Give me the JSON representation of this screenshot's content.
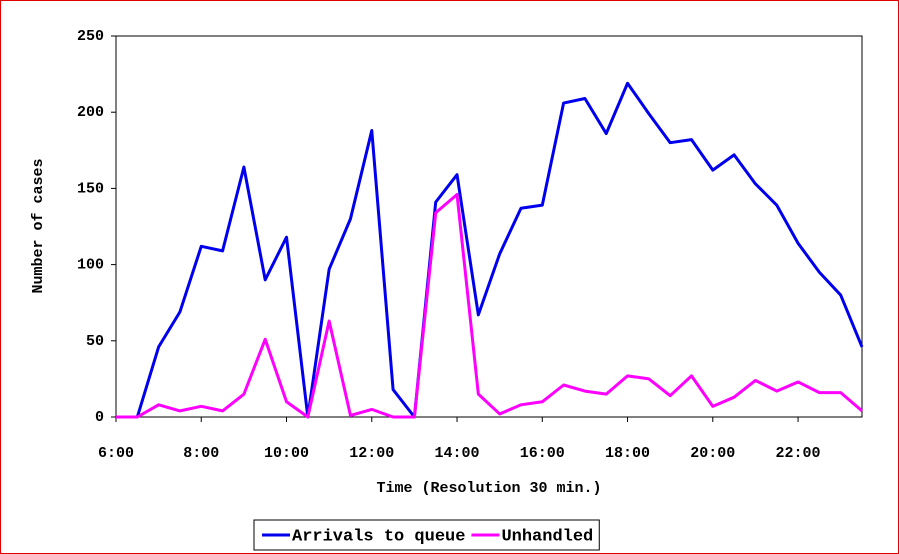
{
  "chart_data": {
    "type": "line",
    "x_label": "Time (Resolution 30 min.)",
    "y_label": "Number of cases",
    "categories": [
      "6:00",
      null,
      null,
      null,
      "8:00",
      null,
      null,
      null,
      "10:00",
      null,
      null,
      null,
      "12:00",
      null,
      null,
      null,
      "14:00",
      null,
      null,
      null,
      "16:00",
      null,
      null,
      null,
      "18:00",
      null,
      null,
      null,
      "20:00",
      null,
      null,
      null,
      "22:00",
      null,
      null,
      null
    ],
    "series": [
      {
        "name": "Arrivals to queue",
        "color": "#0000ee",
        "values": [
          0,
          0,
          46,
          69,
          112,
          109,
          164,
          90,
          118,
          0,
          97,
          130,
          188,
          18,
          0,
          141,
          159,
          67,
          107,
          137,
          139,
          206,
          209,
          186,
          219,
          199,
          180,
          182,
          162,
          172,
          153,
          139,
          114,
          95,
          80,
          46
        ]
      },
      {
        "name": "Unhandled",
        "color": "#ff00ff",
        "values": [
          0,
          0,
          8,
          4,
          7,
          4,
          15,
          51,
          10,
          0,
          63,
          1,
          5,
          0,
          0,
          134,
          146,
          15,
          2,
          8,
          10,
          21,
          17,
          15,
          27,
          25,
          14,
          27,
          7,
          13,
          24,
          17,
          23,
          16,
          16,
          4
        ]
      }
    ],
    "ylim": [
      0,
      250
    ],
    "yticks": [
      0,
      50,
      100,
      150,
      200,
      250
    ],
    "legend": "bottom"
  }
}
